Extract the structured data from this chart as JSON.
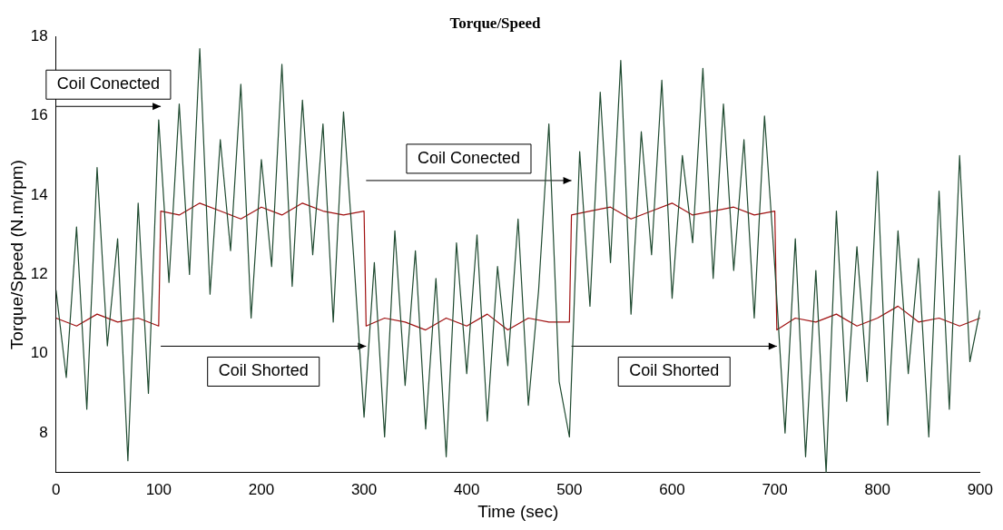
{
  "chart_data": {
    "type": "line",
    "title": "Torque/Speed",
    "xlabel": "Time (sec)",
    "ylabel": "Torque/Speed (N.m/rpm)",
    "xlim": [
      0,
      900
    ],
    "xticks": [
      0,
      100,
      200,
      300,
      400,
      500,
      600,
      700,
      800,
      900
    ],
    "ylim": [
      7,
      18
    ],
    "yticks": [
      8,
      10,
      12,
      14,
      16,
      18
    ],
    "grid": false,
    "legend": false,
    "marker": "none",
    "line_style": "solid",
    "annotations": [
      "Coil Conected",
      "Coil Shorted",
      "Coil Conected",
      "Coil Shorted"
    ],
    "series": [
      {
        "color": "#1f4a30",
        "x": [
          0,
          10,
          20,
          30,
          40,
          50,
          60,
          70,
          80,
          90,
          100,
          110,
          120,
          130,
          140,
          150,
          160,
          170,
          180,
          190,
          200,
          210,
          220,
          230,
          240,
          250,
          260,
          270,
          280,
          290,
          300,
          310,
          320,
          330,
          340,
          350,
          360,
          370,
          380,
          390,
          400,
          410,
          420,
          430,
          440,
          450,
          460,
          470,
          480,
          490,
          500,
          510,
          520,
          530,
          540,
          550,
          560,
          570,
          580,
          590,
          600,
          610,
          620,
          630,
          640,
          650,
          660,
          670,
          680,
          690,
          700,
          710,
          720,
          730,
          740,
          750,
          760,
          770,
          780,
          790,
          800,
          810,
          820,
          830,
          840,
          850,
          860,
          870,
          880,
          890,
          900
        ],
        "values": [
          11.6,
          9.4,
          13.2,
          8.6,
          14.7,
          10.2,
          12.9,
          7.3,
          13.8,
          9.0,
          15.9,
          11.8,
          16.3,
          12.0,
          17.7,
          11.5,
          15.4,
          12.6,
          16.8,
          10.9,
          14.9,
          12.2,
          17.3,
          11.7,
          16.4,
          12.5,
          15.8,
          10.8,
          16.1,
          12.4,
          8.4,
          12.3,
          7.9,
          13.1,
          9.2,
          12.6,
          8.1,
          11.9,
          7.4,
          12.8,
          9.5,
          13.0,
          8.3,
          12.2,
          9.7,
          13.4,
          8.7,
          11.6,
          15.8,
          9.3,
          7.9,
          15.1,
          11.2,
          16.6,
          12.3,
          17.4,
          11.0,
          15.6,
          12.5,
          16.9,
          11.4,
          15.0,
          12.8,
          17.2,
          11.9,
          16.3,
          12.1,
          15.4,
          10.9,
          16.0,
          12.2,
          8.0,
          12.9,
          7.4,
          12.1,
          7.0,
          13.6,
          8.8,
          12.7,
          9.3,
          14.6,
          8.2,
          13.1,
          9.5,
          12.4,
          7.9,
          14.1,
          8.6,
          15.0,
          9.8,
          11.1
        ]
      },
      {
        "color": "#a01010",
        "x": [
          0,
          20,
          40,
          60,
          80,
          100,
          102,
          120,
          140,
          160,
          180,
          200,
          220,
          240,
          260,
          280,
          300,
          302,
          320,
          340,
          360,
          380,
          400,
          420,
          440,
          460,
          480,
          500,
          502,
          520,
          540,
          560,
          580,
          600,
          620,
          640,
          660,
          680,
          700,
          702,
          720,
          740,
          760,
          780,
          800,
          820,
          840,
          860,
          880,
          900
        ],
        "values": [
          10.9,
          10.7,
          11.0,
          10.8,
          10.9,
          10.7,
          13.6,
          13.5,
          13.8,
          13.6,
          13.4,
          13.7,
          13.5,
          13.8,
          13.6,
          13.5,
          13.6,
          10.7,
          10.9,
          10.8,
          10.6,
          10.9,
          10.7,
          11.0,
          10.6,
          10.9,
          10.8,
          10.8,
          13.5,
          13.6,
          13.7,
          13.4,
          13.6,
          13.8,
          13.5,
          13.6,
          13.7,
          13.5,
          13.6,
          10.6,
          10.9,
          10.8,
          11.0,
          10.7,
          10.9,
          11.2,
          10.8,
          10.9,
          10.7,
          10.9
        ]
      }
    ]
  }
}
